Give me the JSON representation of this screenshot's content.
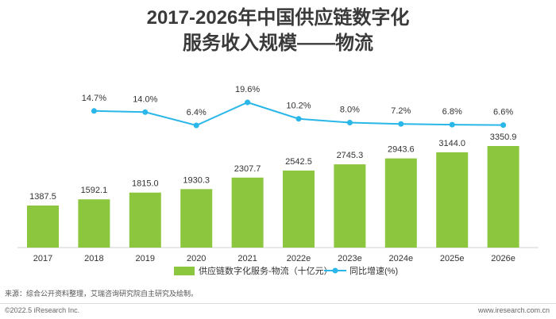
{
  "header": {
    "title_line1": "2017-2026年中国供应链数字化",
    "title_line2": "服务收入规模——物流"
  },
  "chart_data": {
    "type": "bar+line",
    "categories": [
      "2017",
      "2018",
      "2019",
      "2020",
      "2021",
      "2022e",
      "2023e",
      "2024e",
      "2025e",
      "2026e"
    ],
    "series": [
      {
        "name": "供应链数字化服务-物流（十亿元）",
        "type": "bar",
        "color": "#8cc63e",
        "values": [
          1387.5,
          1592.1,
          1815.0,
          1930.3,
          2307.7,
          2542.5,
          2745.3,
          2943.6,
          3144.0,
          3350.9
        ],
        "labels": [
          "1387.5",
          "1592.1",
          "1815.0",
          "1930.3",
          "2307.7",
          "2542.5",
          "2745.3",
          "2943.6",
          "3144.0",
          "3350.9"
        ]
      },
      {
        "name": "同比增速(%)",
        "type": "line",
        "color": "#29b6e8",
        "values": [
          null,
          14.7,
          14.0,
          6.4,
          19.6,
          10.2,
          8.0,
          7.2,
          6.8,
          6.6
        ],
        "labels": [
          null,
          "14.7%",
          "14.0%",
          "6.4%",
          "19.6%",
          "10.2%",
          "8.0%",
          "7.2%",
          "6.8%",
          "6.6%"
        ]
      }
    ],
    "legend_position": "bottom-center"
  },
  "footer": {
    "source": "来源：综合公开资料整理，艾瑞咨询研究院自主研究及绘制。",
    "copyright": "©2022.5 iResearch Inc.",
    "website": "www.iresearch.com.cn"
  }
}
